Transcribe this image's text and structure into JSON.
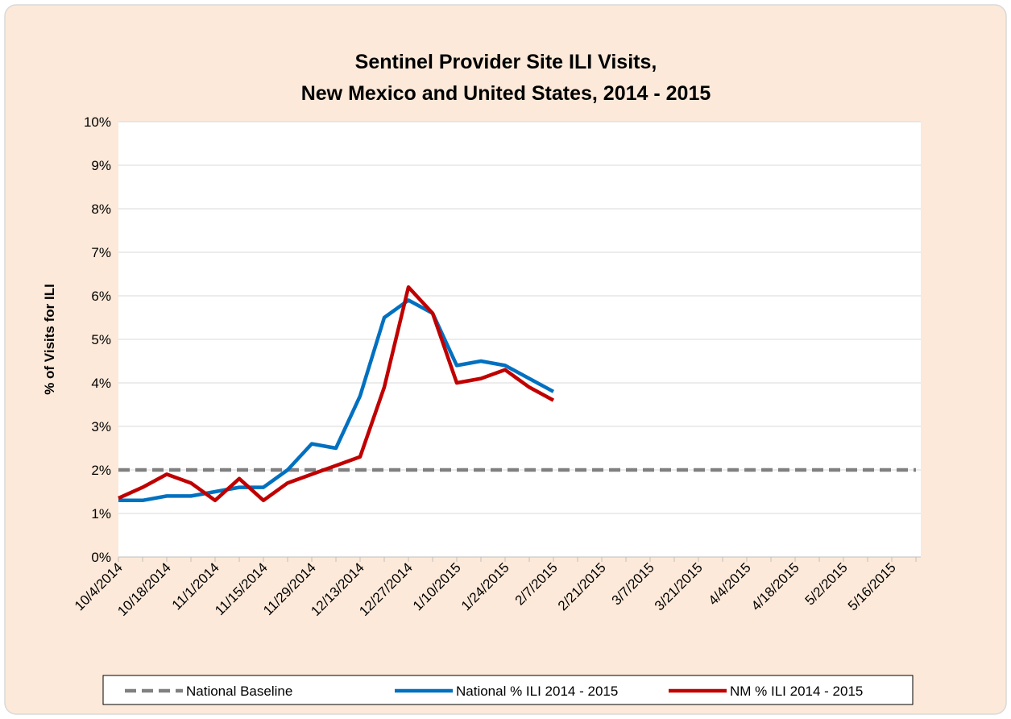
{
  "chart_data": {
    "type": "line",
    "title": [
      "Sentinel Provider Site ILI Visits,",
      "New Mexico and United States, 2014 - 2015"
    ],
    "y_label": "% of Visits for ILI",
    "categories": [
      "10/4/2014",
      null,
      "10/18/2014",
      null,
      "11/1/2014",
      null,
      "11/15/2014",
      null,
      "11/29/2014",
      null,
      "12/13/2014",
      null,
      "12/27/2014",
      null,
      "1/10/2015",
      null,
      "1/24/2015",
      null,
      "2/7/2015",
      null,
      "2/21/2015",
      null,
      "3/7/2015",
      null,
      "3/21/2015",
      null,
      "4/4/2015",
      null,
      "4/18/2015",
      null,
      "5/2/2015",
      null,
      "5/16/2015",
      null
    ],
    "series": [
      {
        "name": "National Baseline",
        "color": "#808080",
        "dashed": true,
        "values": [
          2,
          2,
          2,
          2,
          2,
          2,
          2,
          2,
          2,
          2,
          2,
          2,
          2,
          2,
          2,
          2,
          2,
          2,
          2,
          2,
          2,
          2,
          2,
          2,
          2,
          2,
          2,
          2,
          2,
          2,
          2,
          2,
          2,
          2
        ]
      },
      {
        "name": "National % ILI 2014 - 2015",
        "color": "#0070c0",
        "dashed": false,
        "values": [
          1.3,
          1.3,
          1.4,
          1.4,
          1.5,
          1.6,
          1.6,
          2.0,
          2.6,
          2.5,
          3.7,
          5.5,
          5.9,
          5.6,
          4.4,
          4.5,
          4.4,
          4.1,
          3.8,
          null,
          null,
          null,
          null,
          null,
          null,
          null,
          null,
          null,
          null,
          null,
          null,
          null,
          null,
          null
        ]
      },
      {
        "name": "NM % ILI 2014 - 2015",
        "color": "#c00000",
        "dashed": false,
        "values": [
          1.35,
          1.6,
          1.9,
          1.7,
          1.3,
          1.8,
          1.3,
          1.7,
          1.9,
          2.1,
          2.3,
          3.9,
          6.2,
          5.6,
          4.0,
          4.1,
          4.3,
          3.9,
          3.6,
          null,
          null,
          null,
          null,
          null,
          null,
          null,
          null,
          null,
          null,
          null,
          null,
          null,
          null,
          null
        ]
      }
    ],
    "ylim": [
      0,
      10
    ],
    "yticks": [
      {
        "value": 0,
        "label": "0%"
      },
      {
        "value": 1,
        "label": "1%"
      },
      {
        "value": 2,
        "label": "2%"
      },
      {
        "value": 3,
        "label": "3%"
      },
      {
        "value": 4,
        "label": "4%"
      },
      {
        "value": 5,
        "label": "5%"
      },
      {
        "value": 6,
        "label": "6%"
      },
      {
        "value": 7,
        "label": "7%"
      },
      {
        "value": 8,
        "label": "8%"
      },
      {
        "value": 9,
        "label": "9%"
      },
      {
        "value": 10,
        "label": "10%"
      }
    ],
    "grid": true,
    "legend": "bottom"
  }
}
